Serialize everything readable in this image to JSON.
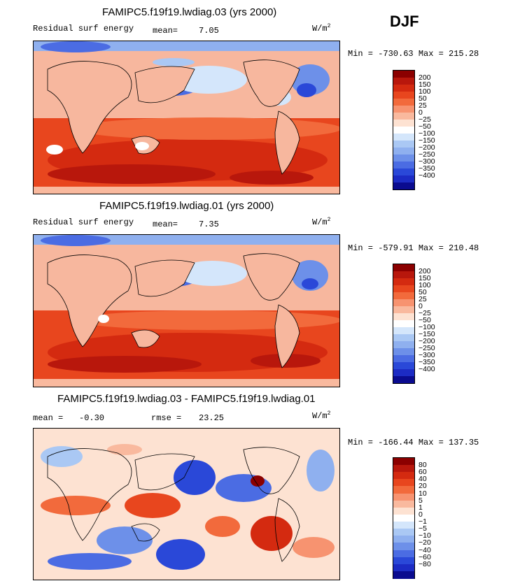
{
  "season": "DJF",
  "panels": [
    {
      "title": "FAMIPC5.f19f19.lwdiag.03 (yrs 2000)",
      "variable": "Residual surf energy",
      "stat1_label": "mean=",
      "stat1_value": "7.05",
      "units_base": "W/m",
      "units_exp": "2",
      "minmax": "Min = -730.63 Max = 215.28"
    },
    {
      "title": "FAMIPC5.f19f19.lwdiag.01 (yrs 2000)",
      "variable": "Residual surf energy",
      "stat1_label": "mean=",
      "stat1_value": "7.35",
      "units_base": "W/m",
      "units_exp": "2",
      "minmax": "Min = -579.91 Max = 210.48"
    },
    {
      "title": "FAMIPC5.f19f19.lwdiag.03 - FAMIPC5.f19f19.lwdiag.01",
      "stat1_label": "mean =",
      "stat1_value": "-0.30",
      "stat2_label": "rmse =",
      "stat2_value": "23.25",
      "units_base": "W/m",
      "units_exp": "2",
      "minmax": "Min = -166.44 Max = 137.35"
    }
  ],
  "chart_data": [
    {
      "type": "heatmap",
      "title": "FAMIPC5.f19f19.lwdiag.03 (yrs 2000)",
      "variable": "Residual surf energy",
      "units": "W/m2",
      "mean": 7.05,
      "min": -730.63,
      "max": 215.28,
      "colorbar_levels": [
        "200",
        "150",
        "100",
        "50",
        "25",
        "0",
        "-25",
        "-50",
        "-100",
        "-150",
        "-200",
        "-250",
        "-300",
        "-350",
        "-400"
      ],
      "colorbar_colors": [
        "#8b0000",
        "#b8170c",
        "#d42a10",
        "#e8461e",
        "#f26a3c",
        "#f79370",
        "#f9b99e",
        "#fde2d2",
        "#ffffff",
        "#d4e6fb",
        "#aac8f4",
        "#8fb0ef",
        "#6d90e9",
        "#4b6ce3",
        "#2a48d8",
        "#1c2bc4",
        "#0a0b8f"
      ]
    },
    {
      "type": "heatmap",
      "title": "FAMIPC5.f19f19.lwdiag.01 (yrs 2000)",
      "variable": "Residual surf energy",
      "units": "W/m2",
      "mean": 7.35,
      "min": -579.91,
      "max": 210.48,
      "colorbar_levels": [
        "200",
        "150",
        "100",
        "50",
        "25",
        "0",
        "-25",
        "-50",
        "-100",
        "-150",
        "-200",
        "-250",
        "-300",
        "-350",
        "-400"
      ],
      "colorbar_colors": [
        "#8b0000",
        "#b8170c",
        "#d42a10",
        "#e8461e",
        "#f26a3c",
        "#f79370",
        "#f9b99e",
        "#fde2d2",
        "#ffffff",
        "#d4e6fb",
        "#aac8f4",
        "#8fb0ef",
        "#6d90e9",
        "#4b6ce3",
        "#2a48d8",
        "#1c2bc4",
        "#0a0b8f"
      ]
    },
    {
      "type": "heatmap",
      "title": "FAMIPC5.f19f19.lwdiag.03 - FAMIPC5.f19f19.lwdiag.01",
      "units": "W/m2",
      "mean": -0.3,
      "rmse": 23.25,
      "min": -166.44,
      "max": 137.35,
      "colorbar_levels": [
        "80",
        "60",
        "40",
        "20",
        "10",
        "5",
        "1",
        "0",
        "-1",
        "-5",
        "-10",
        "-20",
        "-40",
        "-60",
        "-80"
      ],
      "colorbar_colors": [
        "#8b0000",
        "#b8170c",
        "#d42a10",
        "#e8461e",
        "#f26a3c",
        "#f79370",
        "#f9b99e",
        "#fde2d2",
        "#ffffff",
        "#d4e6fb",
        "#aac8f4",
        "#8fb0ef",
        "#6d90e9",
        "#4b6ce3",
        "#2a48d8",
        "#1c2bc4",
        "#0a0b8f"
      ]
    }
  ]
}
